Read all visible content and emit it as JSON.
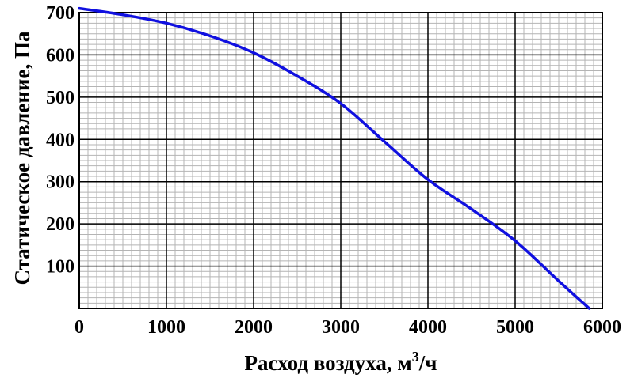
{
  "chart_data": {
    "type": "line",
    "xlabel": "Расход воздуха, м",
    "xlabel_superscript": "3",
    "xlabel_suffix": "/ч",
    "ylabel": "Статическое давление, Па",
    "xlim": [
      0,
      6000
    ],
    "ylim": [
      0,
      700
    ],
    "x_ticks": [
      "0",
      "1000",
      "2000",
      "3000",
      "4000",
      "5000",
      "6000"
    ],
    "y_ticks": [
      "100",
      "200",
      "300",
      "400",
      "500",
      "600",
      "700"
    ],
    "grid": true,
    "line_color": "#1010e0",
    "series": [
      {
        "x": [
          0,
          500,
          1000,
          1500,
          2000,
          2500,
          3000,
          3500,
          4000,
          4500,
          5000,
          5500,
          5850
        ],
        "values": [
          710,
          695,
          675,
          645,
          605,
          550,
          485,
          395,
          305,
          235,
          160,
          65,
          0
        ]
      }
    ]
  }
}
